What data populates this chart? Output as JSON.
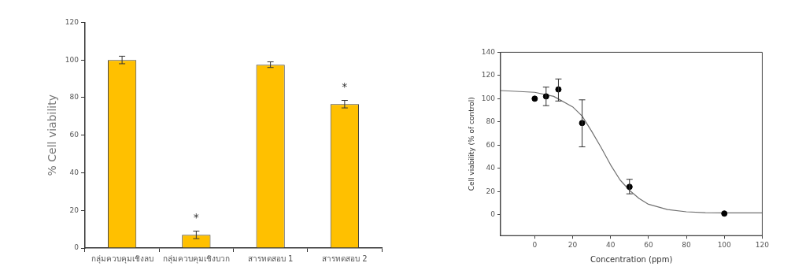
{
  "chart_data": [
    {
      "type": "bar",
      "categories": [
        "กลุ่มควบคุมเชิงลบ",
        "กลุ่มควบคุมเชิงบวก",
        "สารทดสอบ 1",
        "สารทดสอบ 2"
      ],
      "values": [
        100,
        7,
        97.5,
        76.5
      ],
      "errors": [
        2,
        2,
        1.5,
        2
      ],
      "color": "#ffc000",
      "ylabel": "% Cell viability",
      "ylim": [
        0,
        120
      ],
      "yticks": [
        0,
        20,
        40,
        60,
        80,
        100,
        120
      ],
      "annotations": [
        {
          "text": "*",
          "x": "กลุ่มควบคุมเชิงบวก",
          "y": 7
        },
        {
          "text": "*",
          "x": "สารทดสอบ 2",
          "y": 76.5
        }
      ]
    },
    {
      "type": "scatter",
      "xlabel": "Concentration (ppm)",
      "ylabel": "Cell viability (% of control)",
      "xlim": [
        -18,
        120
      ],
      "xticks": [
        0,
        20,
        40,
        60,
        80,
        100,
        120
      ],
      "ylim": [
        -18,
        140
      ],
      "yticks": [
        0,
        20,
        40,
        60,
        80,
        100,
        120,
        140
      ],
      "series": [
        {
          "type": "scatter",
          "marker": "circle",
          "color": "#000000",
          "x": [
            0,
            6,
            12.5,
            25,
            50,
            100
          ],
          "values": [
            100,
            102,
            108,
            79,
            24,
            1
          ],
          "errors": [
            null,
            [
              94,
              110
            ],
            [
              98,
              117
            ],
            [
              58.5,
              99
            ],
            [
              18,
              30.5
            ],
            null
          ]
        },
        {
          "type": "line",
          "marker": "none",
          "color": "#707070",
          "x": [
            -18,
            0,
            10,
            20,
            25,
            30,
            35,
            40,
            45,
            50,
            55,
            60,
            70,
            80,
            90,
            100,
            120
          ],
          "values": [
            107,
            105.5,
            102,
            93,
            85,
            72,
            58,
            43,
            30,
            21,
            14,
            9,
            4.5,
            2.5,
            1.8,
            1.5,
            1.5
          ]
        }
      ]
    }
  ]
}
